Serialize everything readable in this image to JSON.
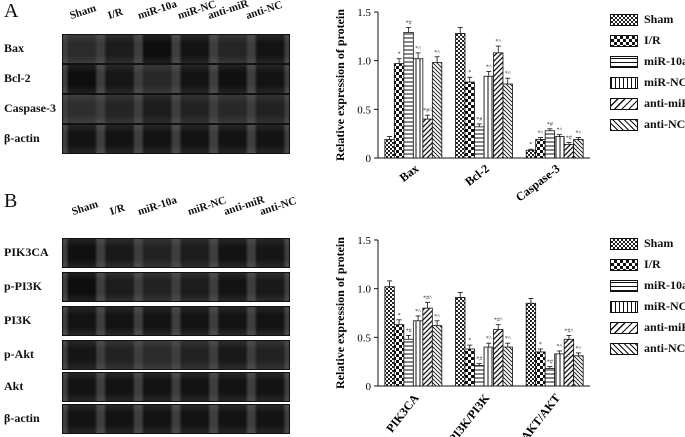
{
  "panels": [
    {
      "letter": "A",
      "lanes": [
        "Sham",
        "I/R",
        "miR-10a",
        "miR-NC",
        "anti-miR",
        "anti-NC"
      ],
      "blot_rows": [
        {
          "label": "Bax",
          "bands": [
            0.45,
            0.7,
            0.95,
            0.85,
            0.55,
            0.85
          ]
        },
        {
          "label": "Bcl-2",
          "bands": [
            0.95,
            0.8,
            0.5,
            0.85,
            0.9,
            0.85
          ]
        },
        {
          "label": "Caspase-3",
          "bands": [
            0.4,
            0.55,
            0.7,
            0.6,
            0.5,
            0.6
          ]
        },
        {
          "label": "β-actin",
          "bands": [
            0.85,
            0.85,
            0.85,
            0.85,
            0.85,
            0.85
          ]
        }
      ]
    },
    {
      "letter": "B",
      "lanes": [
        "Sham",
        "I/R",
        "miR-10a",
        "miR-NC",
        "anti-miR",
        "anti-NC"
      ],
      "blot_rows": [
        {
          "label": "PIK3CA",
          "bands": [
            0.9,
            0.75,
            0.6,
            0.7,
            0.85,
            0.8
          ]
        },
        {
          "label": "p-PI3K",
          "bands": [
            0.95,
            0.7,
            0.6,
            0.7,
            0.85,
            0.75
          ]
        },
        {
          "label": "PI3K",
          "bands": [
            0.85,
            0.85,
            0.85,
            0.85,
            0.85,
            0.85
          ]
        },
        {
          "label": "p-Akt",
          "bands": [
            0.8,
            0.6,
            0.45,
            0.6,
            0.75,
            0.6
          ]
        },
        {
          "label": "Akt",
          "bands": [
            0.85,
            0.85,
            0.85,
            0.85,
            0.85,
            0.85
          ]
        },
        {
          "label": "β-actin",
          "bands": [
            0.85,
            0.85,
            0.85,
            0.85,
            0.85,
            0.85
          ]
        }
      ]
    }
  ],
  "chart_data": [
    {
      "type": "bar",
      "title": "",
      "xlabel": "",
      "ylabel": "Relative expression of protein",
      "ylim": [
        0,
        1.5
      ],
      "yticks": [
        "0",
        "0.5",
        "1.0",
        "1.5"
      ],
      "ytick_values": [
        0,
        0.5,
        1.0,
        1.5
      ],
      "categories": [
        "Bax",
        "Bcl-2",
        "Caspase-3"
      ],
      "legend_position": "right",
      "series": [
        {
          "name": "Sham",
          "values": [
            0.19,
            1.28,
            0.08
          ],
          "errors": [
            0.03,
            0.06,
            0.01
          ],
          "marks": [
            "",
            "",
            "*"
          ]
        },
        {
          "name": "I/R",
          "values": [
            0.97,
            0.78,
            0.19
          ],
          "errors": [
            0.05,
            0.05,
            0.02
          ],
          "marks": [
            "*",
            "*",
            "*^"
          ]
        },
        {
          "name": "miR-10a",
          "values": [
            1.29,
            0.32,
            0.28
          ],
          "errors": [
            0.05,
            0.03,
            0.02
          ],
          "marks": [
            "*#",
            "*#",
            "*#"
          ]
        },
        {
          "name": "miR-NC",
          "values": [
            1.02,
            0.84,
            0.22
          ],
          "errors": [
            0.06,
            0.05,
            0.02
          ],
          "marks": [
            "*^",
            "*^",
            "*^"
          ]
        },
        {
          "name": "anti-miR",
          "values": [
            0.4,
            1.08,
            0.14
          ],
          "errors": [
            0.04,
            0.07,
            0.02
          ],
          "marks": [
            "*#^",
            "*^",
            "*#"
          ]
        },
        {
          "name": "anti-NC",
          "values": [
            0.98,
            0.76,
            0.19
          ],
          "errors": [
            0.06,
            0.06,
            0.02
          ],
          "marks": [
            "*^",
            "*^",
            "*^"
          ]
        }
      ]
    },
    {
      "type": "bar",
      "title": "",
      "xlabel": "",
      "ylabel": "Relative expression of protein",
      "ylim": [
        0,
        1.5
      ],
      "yticks": [
        "0",
        "0.5",
        "1.0",
        "1.5"
      ],
      "ytick_values": [
        0,
        0.5,
        1.0,
        1.5
      ],
      "categories": [
        "PIK3CA",
        "p-PI3K/PI3K",
        "p-AKT/AKT"
      ],
      "legend_position": "right",
      "series": [
        {
          "name": "Sham",
          "values": [
            1.02,
            0.91,
            0.85
          ],
          "errors": [
            0.06,
            0.05,
            0.05
          ],
          "marks": [
            "",
            "",
            ""
          ]
        },
        {
          "name": "I/R",
          "values": [
            0.63,
            0.38,
            0.35
          ],
          "errors": [
            0.05,
            0.04,
            0.03
          ],
          "marks": [
            "*",
            "*",
            "*"
          ]
        },
        {
          "name": "miR-10a",
          "values": [
            0.48,
            0.21,
            0.18
          ],
          "errors": [
            0.04,
            0.02,
            0.02
          ],
          "marks": [
            "*#",
            "*#",
            "*#"
          ]
        },
        {
          "name": "miR-NC",
          "values": [
            0.67,
            0.4,
            0.33
          ],
          "errors": [
            0.05,
            0.04,
            0.03
          ],
          "marks": [
            "*^",
            "*^",
            "*^"
          ]
        },
        {
          "name": "anti-miR",
          "values": [
            0.8,
            0.58,
            0.48
          ],
          "errors": [
            0.06,
            0.05,
            0.04
          ],
          "marks": [
            "*#^",
            "*#^",
            "*#^"
          ]
        },
        {
          "name": "anti-NC",
          "values": [
            0.62,
            0.4,
            0.31
          ],
          "errors": [
            0.05,
            0.04,
            0.03
          ],
          "marks": [
            "*^",
            "*^",
            "*^"
          ]
        }
      ]
    }
  ]
}
